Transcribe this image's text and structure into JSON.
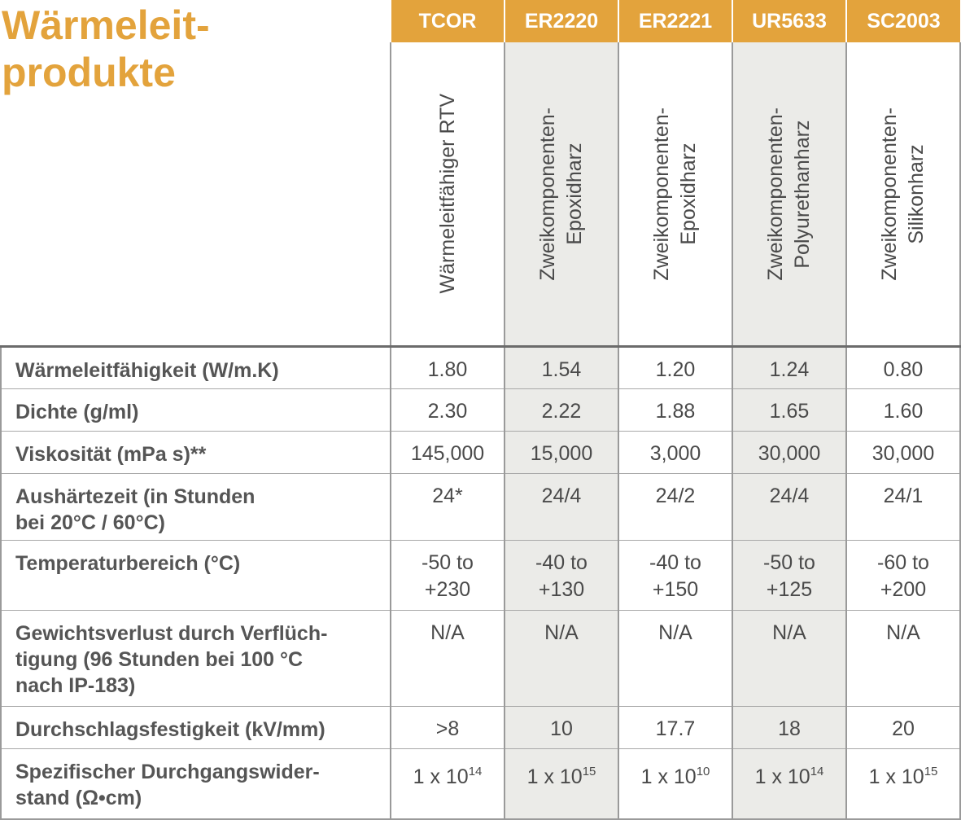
{
  "title": {
    "line1": "Wärmeleit-",
    "line2": "produkte"
  },
  "accent_color": "#e3a33c",
  "products": [
    {
      "code": "TCOR",
      "desc": [
        "Wärmeleitfähiger RTV"
      ]
    },
    {
      "code": "ER2220",
      "desc": [
        "Zweikomponenten-",
        "Epoxidharz"
      ]
    },
    {
      "code": "ER2221",
      "desc": [
        "Zweikomponenten-",
        "Epoxidharz"
      ]
    },
    {
      "code": "UR5633",
      "desc": [
        "Zweikomponenten-",
        "Polyurethanharz"
      ]
    },
    {
      "code": "SC2003",
      "desc": [
        "Zweikomponenten-",
        "Silikonharz"
      ]
    }
  ],
  "rows": [
    {
      "label": [
        "Wärmeleitfähigkeit (W/m.K)"
      ],
      "values": [
        [
          "1.80"
        ],
        [
          "1.54"
        ],
        [
          "1.20"
        ],
        [
          "1.24"
        ],
        [
          "0.80"
        ]
      ]
    },
    {
      "label": [
        "Dichte (g/ml)"
      ],
      "values": [
        [
          "2.30"
        ],
        [
          "2.22"
        ],
        [
          "1.88"
        ],
        [
          "1.65"
        ],
        [
          "1.60"
        ]
      ]
    },
    {
      "label": [
        "Viskosität (mPa s)**"
      ],
      "values": [
        [
          "145,000"
        ],
        [
          "15,000"
        ],
        [
          "3,000"
        ],
        [
          "30,000"
        ],
        [
          "30,000"
        ]
      ]
    },
    {
      "label": [
        "Aushärtezeit (in Stunden",
        "bei 20°C / 60°C)"
      ],
      "values": [
        [
          "24*"
        ],
        [
          "24/4"
        ],
        [
          "24/2"
        ],
        [
          "24/4"
        ],
        [
          "24/1"
        ]
      ]
    },
    {
      "label": [
        "Temperaturbereich (°C)"
      ],
      "values": [
        [
          "-50 to",
          "+230"
        ],
        [
          "-40 to",
          "+130"
        ],
        [
          "-40 to",
          "+150"
        ],
        [
          "-50 to",
          "+125"
        ],
        [
          "-60 to",
          "+200"
        ]
      ]
    },
    {
      "label": [
        "Gewichtsverlust durch Verflüch-",
        "tigung (96 Stunden bei 100 °C",
        "nach IP-183)"
      ],
      "values": [
        [
          "N/A"
        ],
        [
          "N/A"
        ],
        [
          "N/A"
        ],
        [
          "N/A"
        ],
        [
          "N/A"
        ]
      ]
    },
    {
      "label": [
        "Durchschlagsfestigkeit (kV/mm)"
      ],
      "values": [
        [
          ">8"
        ],
        [
          "10"
        ],
        [
          "17.7"
        ],
        [
          "18"
        ],
        [
          "20"
        ]
      ]
    }
  ],
  "resistivity_row": {
    "label": [
      "Spezifischer Durchgangswider-",
      "stand (Ω•cm)"
    ],
    "base": "1 x 10",
    "exponents": [
      "14",
      "15",
      "10",
      "14",
      "15"
    ]
  }
}
